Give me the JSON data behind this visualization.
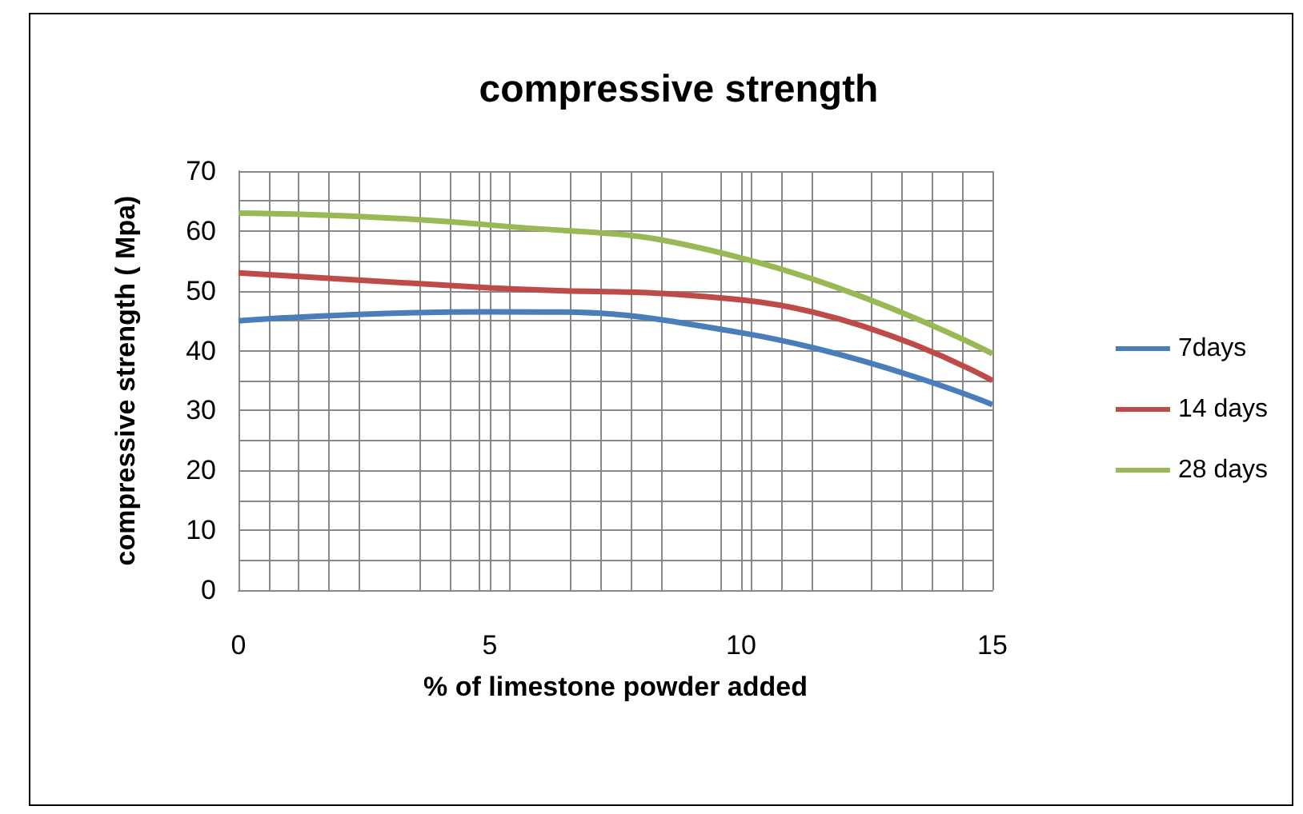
{
  "chart_data": {
    "type": "line",
    "title": "compressive strength",
    "xlabel": "% of limestone powder added",
    "ylabel": "compressive strength ( Mpa)",
    "x": [
      0,
      5,
      10,
      15
    ],
    "series": [
      {
        "name": "7days",
        "color": "#4a7ebb",
        "values": [
          45,
          46.5,
          43,
          31
        ]
      },
      {
        "name": "14 days",
        "color": "#be4b48",
        "values": [
          53,
          50.5,
          48.5,
          35
        ]
      },
      {
        "name": "28 days",
        "color": "#98b954",
        "values": [
          63,
          61,
          55.5,
          39.5
        ]
      }
    ],
    "xlim": [
      0,
      15
    ],
    "xticks": [
      0,
      5,
      10,
      15
    ],
    "ylim": [
      0,
      70
    ],
    "yticks": [
      0,
      10,
      20,
      30,
      40,
      50,
      60,
      70
    ],
    "grid": true,
    "legend": "right",
    "marker": "none",
    "line_style": "solid"
  }
}
